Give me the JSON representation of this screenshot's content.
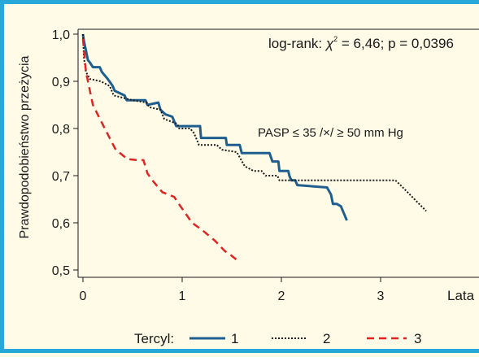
{
  "colors": {
    "border": "#27a8d9",
    "background": "#fffbe6",
    "series1": "#1f5f8f",
    "series2": "#1a1a1a",
    "series3": "#e02424"
  },
  "chart_data": {
    "type": "line",
    "title": "",
    "xlabel": "Lata",
    "ylabel": "Prawdopodobieństwo przeżycia",
    "xlim": [
      -0.05,
      4.0
    ],
    "ylim": [
      0.48,
      1.0
    ],
    "x_ticks": [
      0,
      1,
      2,
      3
    ],
    "x_tick_labels": [
      "0",
      "1",
      "2",
      "3"
    ],
    "y_ticks": [
      0.5,
      0.6,
      0.7,
      0.8,
      0.9,
      1.0
    ],
    "y_tick_labels": [
      "0,5",
      "0,6",
      "0,7",
      "0,8",
      "0,9",
      "1,0"
    ],
    "grid": false,
    "annotations": {
      "stats": "log-rank: χ² = 6,46; p = 0,0396",
      "stats_prefix": "log-rank: ",
      "stats_chi": "χ",
      "stats_sup": "2",
      "stats_suffix": " = 6,46; p = 0,0396",
      "pasp": "PASP ≤ 35 /×/ ≥ 50  mm Hg"
    },
    "legend": {
      "title": "Tercyl:",
      "placement": "bottom",
      "labels": [
        "1",
        "2",
        "3"
      ]
    },
    "series": [
      {
        "name": "1",
        "style": "solid",
        "points": [
          [
            0,
            1.0
          ],
          [
            0.01,
            0.985
          ],
          [
            0.03,
            0.965
          ],
          [
            0.05,
            0.945
          ],
          [
            0.07,
            0.94
          ],
          [
            0.1,
            0.93
          ],
          [
            0.17,
            0.93
          ],
          [
            0.19,
            0.92
          ],
          [
            0.25,
            0.905
          ],
          [
            0.3,
            0.89
          ],
          [
            0.32,
            0.88
          ],
          [
            0.42,
            0.87
          ],
          [
            0.44,
            0.86
          ],
          [
            0.63,
            0.86
          ],
          [
            0.65,
            0.85
          ],
          [
            0.76,
            0.855
          ],
          [
            0.78,
            0.84
          ],
          [
            0.83,
            0.83
          ],
          [
            0.9,
            0.825
          ],
          [
            0.94,
            0.805
          ],
          [
            1.18,
            0.805
          ],
          [
            1.19,
            0.78
          ],
          [
            1.44,
            0.78
          ],
          [
            1.45,
            0.765
          ],
          [
            1.58,
            0.765
          ],
          [
            1.6,
            0.748
          ],
          [
            1.88,
            0.748
          ],
          [
            1.91,
            0.73
          ],
          [
            1.97,
            0.73
          ],
          [
            1.98,
            0.71
          ],
          [
            2.07,
            0.71
          ],
          [
            2.08,
            0.7
          ],
          [
            2.1,
            0.69
          ],
          [
            2.14,
            0.69
          ],
          [
            2.16,
            0.68
          ],
          [
            2.46,
            0.675
          ],
          [
            2.5,
            0.66
          ],
          [
            2.52,
            0.64
          ],
          [
            2.56,
            0.64
          ],
          [
            2.6,
            0.635
          ],
          [
            2.66,
            0.605
          ]
        ]
      },
      {
        "name": "2",
        "style": "dotted",
        "points": [
          [
            0,
            1.0
          ],
          [
            0.01,
            0.95
          ],
          [
            0.03,
            0.92
          ],
          [
            0.07,
            0.905
          ],
          [
            0.18,
            0.9
          ],
          [
            0.27,
            0.89
          ],
          [
            0.31,
            0.87
          ],
          [
            0.5,
            0.86
          ],
          [
            0.64,
            0.855
          ],
          [
            0.67,
            0.845
          ],
          [
            0.78,
            0.84
          ],
          [
            0.82,
            0.82
          ],
          [
            0.95,
            0.81
          ],
          [
            0.97,
            0.8
          ],
          [
            1.08,
            0.8
          ],
          [
            1.12,
            0.79
          ],
          [
            1.17,
            0.765
          ],
          [
            1.35,
            0.765
          ],
          [
            1.4,
            0.755
          ],
          [
            1.55,
            0.75
          ],
          [
            1.63,
            0.72
          ],
          [
            1.72,
            0.71
          ],
          [
            1.8,
            0.71
          ],
          [
            1.84,
            0.7
          ],
          [
            1.96,
            0.7
          ],
          [
            1.98,
            0.69
          ],
          [
            2.15,
            0.69
          ],
          [
            3.15,
            0.69
          ],
          [
            3.2,
            0.68
          ],
          [
            3.46,
            0.625
          ]
        ]
      },
      {
        "name": "3",
        "style": "dashed",
        "points": [
          [
            0,
            0.99
          ],
          [
            0.03,
            0.92
          ],
          [
            0.1,
            0.85
          ],
          [
            0.22,
            0.8
          ],
          [
            0.33,
            0.755
          ],
          [
            0.45,
            0.735
          ],
          [
            0.55,
            0.733
          ],
          [
            0.61,
            0.733
          ],
          [
            0.65,
            0.705
          ],
          [
            0.7,
            0.69
          ],
          [
            0.8,
            0.665
          ],
          [
            0.92,
            0.655
          ],
          [
            0.95,
            0.645
          ],
          [
            1.1,
            0.6
          ],
          [
            1.2,
            0.585
          ],
          [
            1.33,
            0.562
          ],
          [
            1.43,
            0.54
          ],
          [
            1.5,
            0.53
          ],
          [
            1.57,
            0.518
          ]
        ]
      }
    ]
  }
}
